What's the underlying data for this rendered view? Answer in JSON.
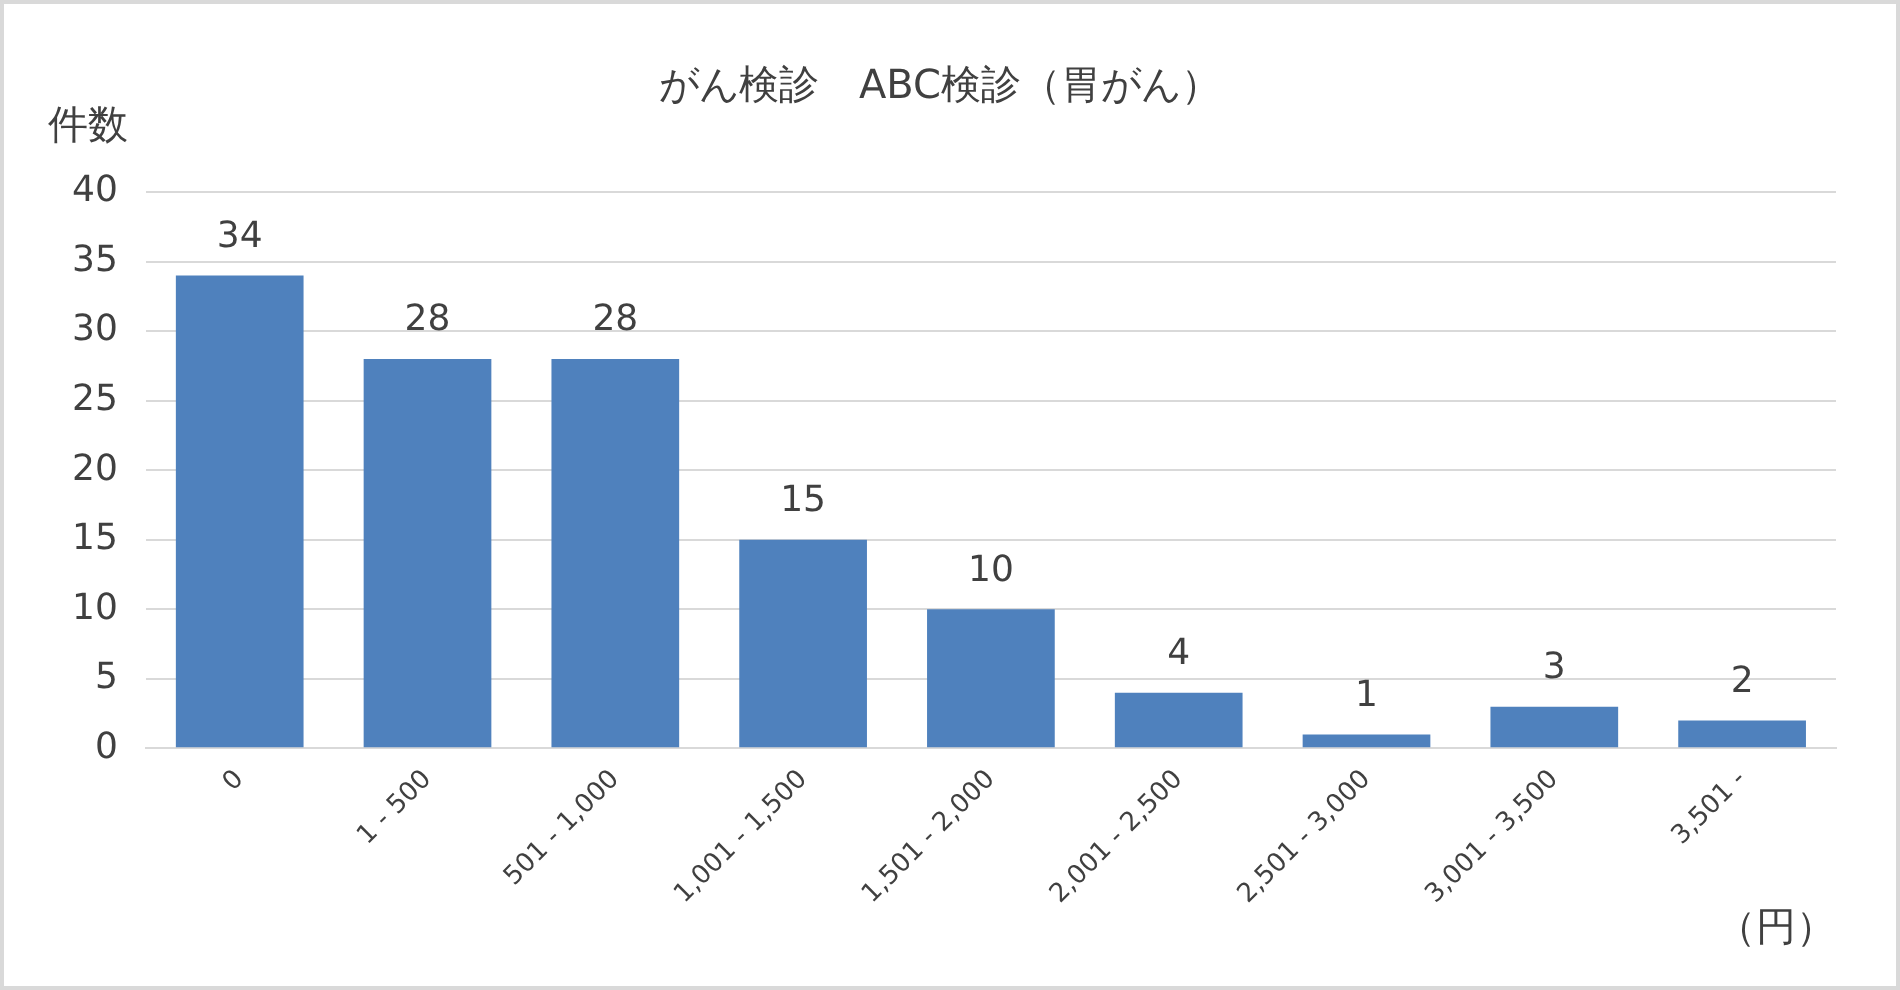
{
  "chart_data": {
    "type": "bar",
    "title": "がん検診　ABC検診（胃がん）",
    "ylabel": "件数",
    "xlabel": "（円）",
    "categories": [
      "0",
      "1 - 500",
      "501 - 1,000",
      "1,001 - 1,500",
      "1,501 - 2,000",
      "2,001 - 2,500",
      "2,501 - 3,000",
      "3,001 - 3,500",
      "3,501 -"
    ],
    "values": [
      34,
      28,
      28,
      15,
      10,
      4,
      1,
      3,
      2
    ],
    "color": "#4f81bd",
    "ylim": [
      0,
      40
    ],
    "yticks": [
      0,
      5,
      10,
      15,
      20,
      25,
      30,
      35,
      40
    ],
    "grid": "y",
    "data_labels": true,
    "legend": false
  }
}
